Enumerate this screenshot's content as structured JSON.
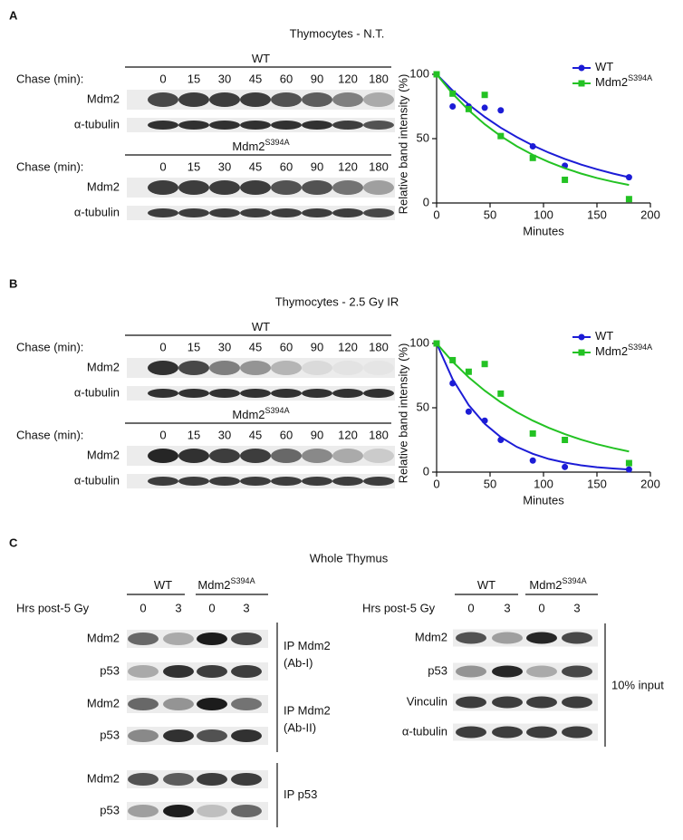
{
  "panels": [
    {
      "label": "A",
      "title": "Thymocytes - N.T.",
      "blots": [
        {
          "genotype": "WT",
          "chase_label": "Chase (min):",
          "lanes": [
            "0",
            "15",
            "30",
            "45",
            "60",
            "90",
            "120",
            "180"
          ],
          "rows": [
            "Mdm2",
            "α-tubulin"
          ]
        },
        {
          "genotype": "Mdm2",
          "genotype_sup": "S394A",
          "chase_label": "Chase (min):",
          "lanes": [
            "0",
            "15",
            "30",
            "45",
            "60",
            "90",
            "120",
            "180"
          ],
          "rows": [
            "Mdm2",
            "α-tubulin"
          ]
        }
      ]
    },
    {
      "label": "B",
      "title": "Thymocytes - 2.5 Gy IR",
      "blots": [
        {
          "genotype": "WT",
          "chase_label": "Chase (min):",
          "lanes": [
            "0",
            "15",
            "30",
            "45",
            "60",
            "90",
            "120",
            "180"
          ],
          "rows": [
            "Mdm2",
            "α-tubulin"
          ]
        },
        {
          "genotype": "Mdm2",
          "genotype_sup": "S394A",
          "chase_label": "Chase (min):",
          "lanes": [
            "0",
            "15",
            "30",
            "45",
            "60",
            "90",
            "120",
            "180"
          ],
          "rows": [
            "Mdm2",
            "α-tubulin"
          ]
        }
      ]
    }
  ],
  "chart_data": [
    {
      "type": "scatter",
      "xlabel": "Minutes",
      "ylabel": "Relative band intensity (%)",
      "xlim": [
        0,
        200
      ],
      "xticks": [
        0,
        50,
        100,
        150,
        200
      ],
      "ylim": [
        0,
        100
      ],
      "yticks": [
        0,
        50,
        100
      ],
      "legend": "upper right",
      "series": [
        {
          "name": "WT",
          "color": "#1c1cd6",
          "marker": "circle",
          "x": [
            0,
            15,
            30,
            45,
            60,
            90,
            120,
            180
          ],
          "values": [
            100,
            75,
            75,
            74,
            72,
            44,
            29,
            20
          ],
          "fit_x": [
            0,
            15,
            30,
            45,
            60,
            75,
            90,
            105,
            120,
            135,
            150,
            165,
            180
          ],
          "fit": [
            100,
            87.4,
            76.5,
            66.9,
            58.5,
            51.2,
            44.7,
            39.1,
            34.2,
            29.9,
            26.2,
            22.9,
            20
          ]
        },
        {
          "name": "Mdm2",
          "name_sup": "S394A",
          "color": "#23c223",
          "marker": "square",
          "x": [
            0,
            15,
            30,
            45,
            60,
            90,
            120,
            180
          ],
          "values": [
            100,
            85,
            73,
            84,
            52,
            35,
            18,
            3
          ],
          "fit_x": [
            0,
            15,
            30,
            45,
            60,
            75,
            90,
            105,
            120,
            135,
            150,
            165,
            180
          ],
          "fit": [
            100,
            84.9,
            72.1,
            61.2,
            52,
            44.1,
            37.4,
            31.8,
            27,
            22.9,
            19.4,
            16.5,
            14
          ]
        }
      ]
    },
    {
      "type": "scatter",
      "xlabel": "Minutes",
      "ylabel": "Relative band intensity (%)",
      "xlim": [
        0,
        200
      ],
      "xticks": [
        0,
        50,
        100,
        150,
        200
      ],
      "ylim": [
        0,
        100
      ],
      "yticks": [
        0,
        50,
        100
      ],
      "legend": "upper right",
      "series": [
        {
          "name": "WT",
          "color": "#1c1cd6",
          "marker": "circle",
          "x": [
            0,
            15,
            30,
            45,
            60,
            90,
            120,
            180
          ],
          "values": [
            100,
            69,
            47,
            40,
            25,
            9,
            4,
            2
          ],
          "fit_x": [
            0,
            15,
            30,
            45,
            60,
            75,
            90,
            105,
            120,
            135,
            150,
            165,
            180
          ],
          "fit": [
            100,
            72.2,
            52.1,
            37.6,
            27.2,
            19.6,
            14.2,
            10.2,
            7.4,
            5.3,
            3.8,
            2.8,
            2
          ]
        },
        {
          "name": "Mdm2",
          "name_sup": "S394A",
          "color": "#23c223",
          "marker": "square",
          "x": [
            0,
            15,
            30,
            45,
            60,
            90,
            120,
            180
          ],
          "values": [
            100,
            87,
            78,
            84,
            61,
            30,
            25,
            7
          ],
          "fit_x": [
            0,
            15,
            30,
            45,
            60,
            75,
            90,
            105,
            120,
            135,
            150,
            165,
            180
          ],
          "fit": [
            100,
            85.8,
            73.7,
            63.3,
            54.3,
            46.6,
            40,
            34.4,
            29.5,
            25.3,
            21.7,
            18.7,
            16
          ]
        }
      ]
    }
  ],
  "panel_c": {
    "label": "C",
    "title": "Whole Thymus",
    "left": {
      "groups": [
        {
          "genotype": "WT"
        },
        {
          "genotype": "Mdm2",
          "genotype_sup": "S394A"
        }
      ],
      "timepoint_label": "Hrs post-5 Gy",
      "lanes": [
        "0",
        "3",
        "0",
        "3"
      ],
      "sections": [
        {
          "rows": [
            "Mdm2",
            "p53"
          ],
          "label": [
            "IP Mdm2",
            "(Ab-I)"
          ]
        },
        {
          "rows": [
            "Mdm2",
            "p53"
          ],
          "label": [
            "IP Mdm2",
            "(Ab-II)"
          ]
        },
        {
          "rows": [
            "Mdm2",
            "p53"
          ],
          "label": [
            "IP p53"
          ]
        }
      ]
    },
    "right": {
      "groups": [
        {
          "genotype": "WT"
        },
        {
          "genotype": "Mdm2",
          "genotype_sup": "S394A"
        }
      ],
      "timepoint_label": "Hrs post-5 Gy",
      "lanes": [
        "0",
        "3",
        "0",
        "3"
      ],
      "rows": [
        "Mdm2",
        "p53",
        "Vinculin",
        "α-tubulin"
      ],
      "label": "10% input"
    }
  }
}
